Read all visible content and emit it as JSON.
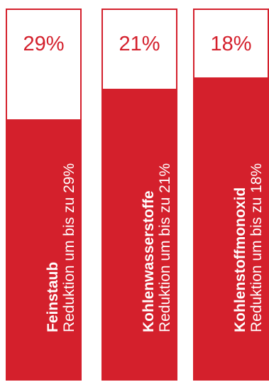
{
  "colors": {
    "accent": "#d4202c",
    "background": "#ffffff"
  },
  "chart_data": {
    "type": "bar",
    "categories": [
      "Feinstaub",
      "Kohlenwasserstoffe",
      "Kohlenstoffmonoxid"
    ],
    "values": [
      29,
      21,
      18
    ],
    "value_labels": [
      "29%",
      "21%",
      "18%"
    ],
    "descriptions": [
      "Reduktion um bis zu 29%",
      "Reduktion um bis zu 21%",
      "Reduktion um bis zu 18%"
    ],
    "ylim": [
      0,
      100
    ]
  }
}
